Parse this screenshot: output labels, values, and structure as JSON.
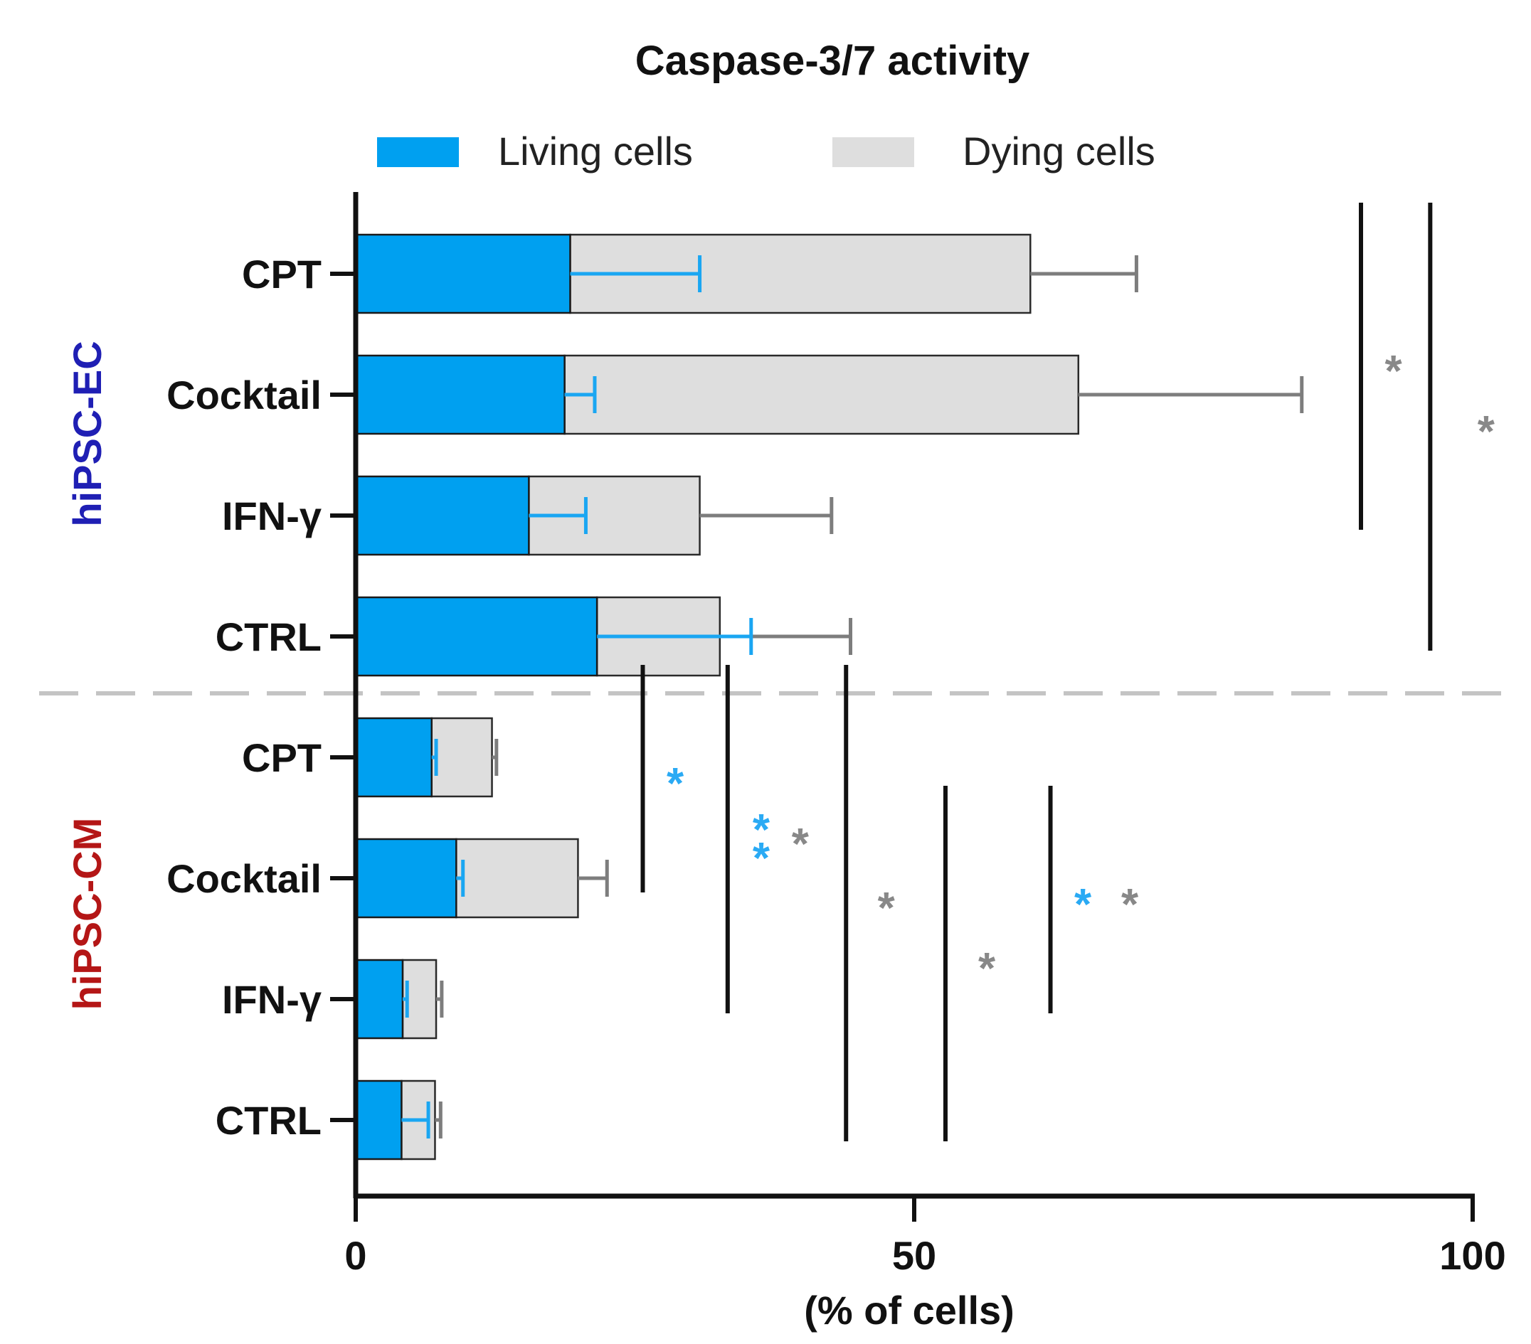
{
  "chart_data": {
    "type": "bar",
    "orientation": "horizontal",
    "stacked": true,
    "title": "Caspase-3/7 activity",
    "xlabel": "(% of cells)",
    "ylabel": "",
    "xlim": [
      0,
      100
    ],
    "xticks": [
      "0",
      "50",
      "100"
    ],
    "xtick_values": [
      0,
      50,
      100
    ],
    "legend": {
      "position": "top",
      "entries": [
        {
          "label": "Living cells",
          "color": "#00a0f0"
        },
        {
          "label": "Dying cells",
          "color": "#dedede"
        }
      ]
    },
    "groups": [
      {
        "name": "hiPSC-EC",
        "color": "#1f1fb4",
        "categories": [
          "CPT",
          "Cocktail",
          "IFN-γ",
          "CTRL"
        ]
      },
      {
        "name": "hiPSC-CM",
        "color": "#b41616",
        "categories": [
          "CPT",
          "Cocktail",
          "IFN-γ",
          "CTRL"
        ]
      }
    ],
    "series": [
      {
        "name": "Living cells",
        "color": "#00a0f0",
        "error_color": "#1aa6f2",
        "values": [
          19.2,
          18.7,
          15.5,
          21.6,
          6.8,
          9.0,
          4.2,
          4.1
        ],
        "errors": [
          11.6,
          2.7,
          5.1,
          13.8,
          0.4,
          0.6,
          0.4,
          2.4
        ]
      },
      {
        "name": "Dying cells",
        "color": "#dedede",
        "error_color": "#7d7d7d",
        "values": [
          41.2,
          46.0,
          15.3,
          11.0,
          5.4,
          10.9,
          3.0,
          3.0
        ],
        "errors": [
          9.5,
          20.0,
          11.8,
          11.7,
          0.4,
          2.6,
          0.5,
          0.5
        ]
      }
    ],
    "significance": [
      {
        "x": 90.0,
        "from": 0,
        "to": 2,
        "marks": [
          {
            "text": "*",
            "color": "#888888",
            "x": 92.9
          }
        ]
      },
      {
        "x": 96.2,
        "from": 0,
        "to": 3,
        "marks": [
          {
            "text": "*",
            "color": "#888888",
            "x": 101.2
          }
        ]
      },
      {
        "x": 25.7,
        "from": 4,
        "to": 5,
        "marks": [
          {
            "text": "*",
            "color": "#2aaaf4",
            "x": 28.6
          }
        ]
      },
      {
        "x": 33.3,
        "from": 4,
        "to": 6,
        "marks": [
          {
            "text": "**",
            "color": "#2aaaf4",
            "x": 36.3
          },
          {
            "text": "*",
            "color": "#888888",
            "x": 39.8
          }
        ]
      },
      {
        "x": 43.9,
        "from": 4,
        "to": 7,
        "marks": [
          {
            "text": "*",
            "color": "#888888",
            "x": 47.5
          }
        ]
      },
      {
        "x": 52.8,
        "from": 5,
        "to": 7,
        "marks": [
          {
            "text": "*",
            "color": "#888888",
            "x": 56.5
          }
        ]
      },
      {
        "x": 62.2,
        "from": 5,
        "to": 6,
        "marks": [
          {
            "text": "*",
            "color": "#2aaaf4",
            "x": 65.1
          },
          {
            "text": "*",
            "color": "#888888",
            "x": 69.3
          }
        ]
      }
    ]
  }
}
